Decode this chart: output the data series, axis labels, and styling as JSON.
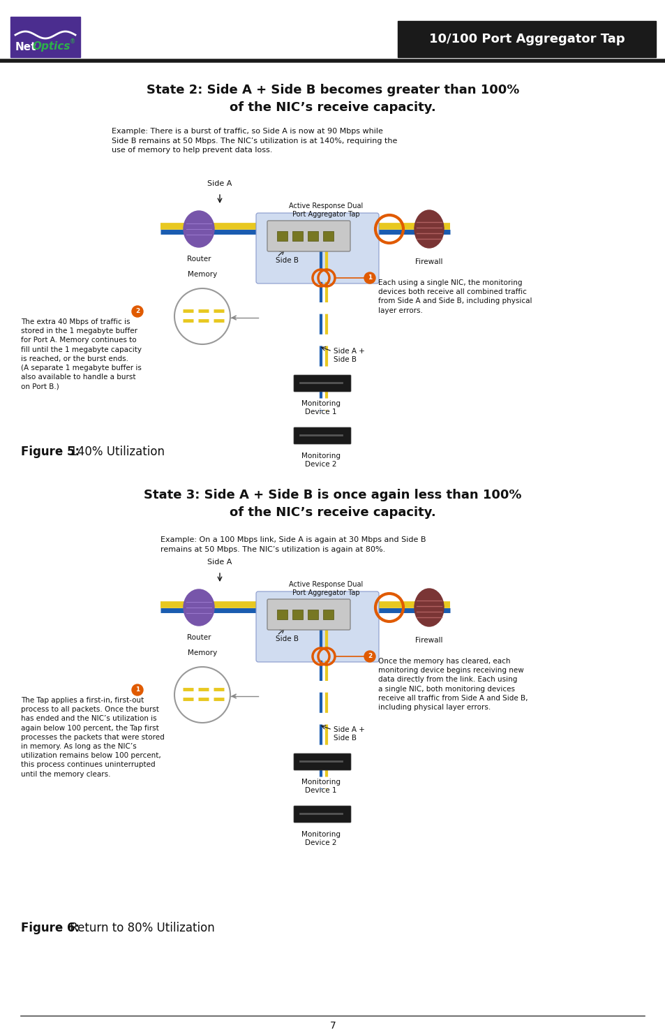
{
  "page_bg": "#ffffff",
  "header_bg": "#1a1a1a",
  "header_text": "10/100 Port Aggregator Tap",
  "header_text_color": "#ffffff",
  "logo_box_color": "#4b2d8f",
  "logo_net_color": "#ffffff",
  "logo_optics_color": "#2db04b",
  "divider_color": "#1a1a1a",
  "title1": "State 2: Side A + Side B becomes greater than 100%\nof the NIC’s receive capacity.",
  "example1": "Example: There is a burst of traffic, so Side A is now at 90 Mbps while\nSide B remains at 50 Mbps. The NIC’s utilization is at 140%, requiring the\nuse of memory to help prevent data loss.",
  "figure5_label": "Figure 5:",
  "figure5_text": " 140% Utilization",
  "title2": "State 3: Side A + Side B is once again less than 100%\nof the NIC’s receive capacity.",
  "example2": "Example: On a 100 Mbps link, Side A is again at 30 Mbps and Side B\nremains at 50 Mbps. The NIC’s utilization is again at 80%.",
  "figure6_label": "Figure 6:",
  "figure6_text": " Return to 80% Utilization",
  "page_number": "7",
  "left_text1": "The extra 40 Mbps of traffic is\nstored in the 1 megabyte buffer\nfor Port A. Memory continues to\nfill until the 1 megabyte capacity\nis reached, or the burst ends.\n(A separate 1 megabyte buffer is\nalso available to handle a burst\non Port B.)",
  "right_text1": "Each using a single NIC, the monitoring\ndevices both receive all combined traffic\nfrom Side A and Side B, including physical\nlayer errors.",
  "left_text2": "The Tap applies a first-in, first-out\nprocess to all packets. Once the burst\nhas ended and the NIC’s utilization is\nagain below 100 percent, the Tap first\nprocesses the packets that were stored\nin memory. As long as the NIC’s\nutilization remains below 100 percent,\nthis process continues uninterrupted\nuntil the memory clears.",
  "right_text2": "Once the memory has cleared, each\nmonitoring device begins receiving new\ndata directly from the link. Each using\na single NIC, both monitoring devices\nreceive all traffic from Side A and Side B,\nincluding physical layer errors.",
  "orange_color": "#e05a00",
  "yellow_color": "#e8c820",
  "blue_color": "#1a5cb0",
  "purple_color": "#7755aa",
  "tap_box_color": "#d0dcf0",
  "tap_border_color": "#8899cc",
  "firewall_color": "#7a3535",
  "firewall_stripe": "#b06060"
}
